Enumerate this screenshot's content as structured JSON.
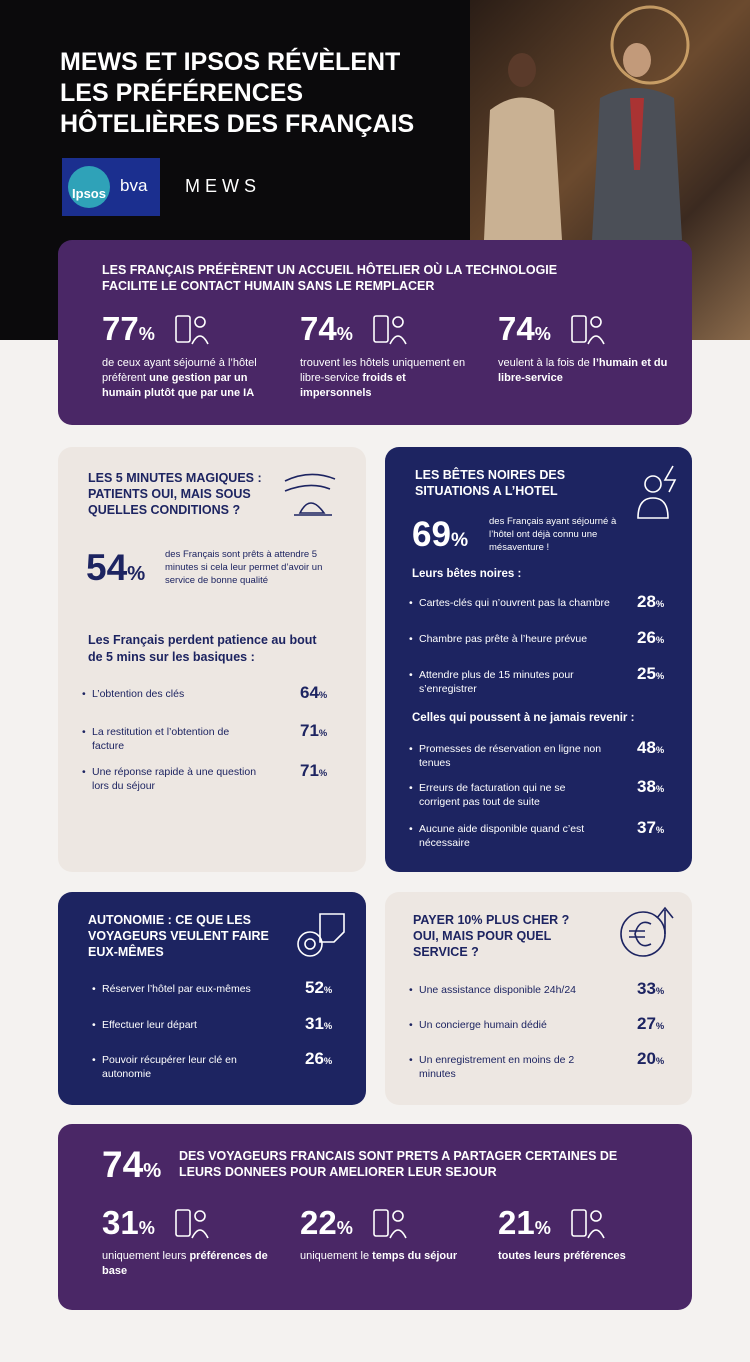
{
  "header": {
    "title": [
      "MEWS ET IPSOS RÉVÈLENT",
      "LES PRÉFÉRENCES",
      "HÔTELIÈRES DES FRANÇAIS"
    ],
    "logo_ipsos": "Ipsos",
    "logo_bva": "bva",
    "logo_mews": "MEWS"
  },
  "intro": {
    "heading": "LES FRANÇAIS PRÉFÈRENT UN ACCUEIL HÔTELIER OÙ LA TECHNOLOGIE FACILITE LE CONTACT HUMAIN SANS LE REMPLACER",
    "stats": [
      {
        "value": "77%",
        "text": "de ceux ayant séjourné à l’hôtel préfèrent ",
        "bold": "une gestion par un humain plutôt que par une IA"
      },
      {
        "value": "74%",
        "text": "trouvent les hôtels uniquement en libre-service ",
        "bold": "froids et impersonnels"
      },
      {
        "value": "74%",
        "text": "veulent à la fois de ",
        "bold": "l’humain et du libre-service"
      }
    ]
  },
  "minutes": {
    "heading": "LES 5 MINUTES MAGIQUES : PATIENTS OUI, MAIS SOUS QUELLES CONDITIONS ?",
    "stat": {
      "value": "54%",
      "text": "des Français sont prêts à attendre 5 minutes si cela leur permet d’avoir un service de bonne qualité"
    },
    "subheading": "Les Français perdent patience au bout de 5 mins sur les basiques :",
    "items": [
      {
        "label": "L’obtention des clés",
        "value": "64%"
      },
      {
        "label": "La restitution et l’obtention de facture",
        "value": "71%"
      },
      {
        "label": "Une réponse rapide à une question lors du séjour",
        "value": "71%"
      }
    ]
  },
  "irritants": {
    "heading": "LES BÊTES NOIRES DES SITUATIONS A L’HOTEL",
    "stat": {
      "value": "69%",
      "text": "des Français ayant séjourné à l’hôtel ont déjà connu une mésaventure !"
    },
    "groups": [
      {
        "title": "Leurs bêtes noires :",
        "items": [
          {
            "label": "Cartes-clés qui n’ouvrent pas la chambre",
            "value": "28%"
          },
          {
            "label": "Chambre pas prête à l’heure prévue",
            "value": "26%"
          },
          {
            "label": "Attendre plus de 15 minutes pour s’enregistrer",
            "value": "25%"
          }
        ]
      },
      {
        "title": "Celles qui poussent à ne jamais revenir :",
        "items": [
          {
            "label": "Promesses de réservation en ligne non tenues",
            "value": "48%"
          },
          {
            "label": "Erreurs de facturation qui ne se corrigent pas tout de suite",
            "value": "38%"
          },
          {
            "label": "Aucune aide disponible quand c’est nécessaire",
            "value": "37%"
          }
        ]
      }
    ]
  },
  "autonomy": {
    "heading": "AUTONOMIE : CE QUE LES VOYAGEURS VEULENT FAIRE EUX-MÊMES",
    "items": [
      {
        "label": "Réserver l’hôtel par eux-mêmes",
        "value": "52%"
      },
      {
        "label": "Effectuer leur départ",
        "value": "31%"
      },
      {
        "label": "Pouvoir récupérer leur clé en autonomie",
        "value": "26%"
      }
    ]
  },
  "premium": {
    "heading": "PAYER 10% PLUS CHER ? OUI, MAIS POUR QUEL SERVICE ?",
    "items": [
      {
        "label": "Une assistance disponible 24h/24",
        "value": "33%"
      },
      {
        "label": "Un concierge humain dédié",
        "value": "27%"
      },
      {
        "label": "Un enregistrement en moins de 2 minutes",
        "value": "20%"
      }
    ]
  },
  "data_sharing": {
    "value": "74%",
    "heading": "DES VOYAGEURS FRANCAIS SONT PRETS A PARTAGER CERTAINES DE LEURS DONNEES POUR AMELIORER LEUR SEJOUR",
    "stats": [
      {
        "value": "31%",
        "text": "uniquement leurs ",
        "bold": "préférences de base"
      },
      {
        "value": "22%",
        "text": "uniquement le ",
        "bold": "temps du séjour"
      },
      {
        "value": "21%",
        "bold": "toutes leurs préférences"
      }
    ]
  }
}
